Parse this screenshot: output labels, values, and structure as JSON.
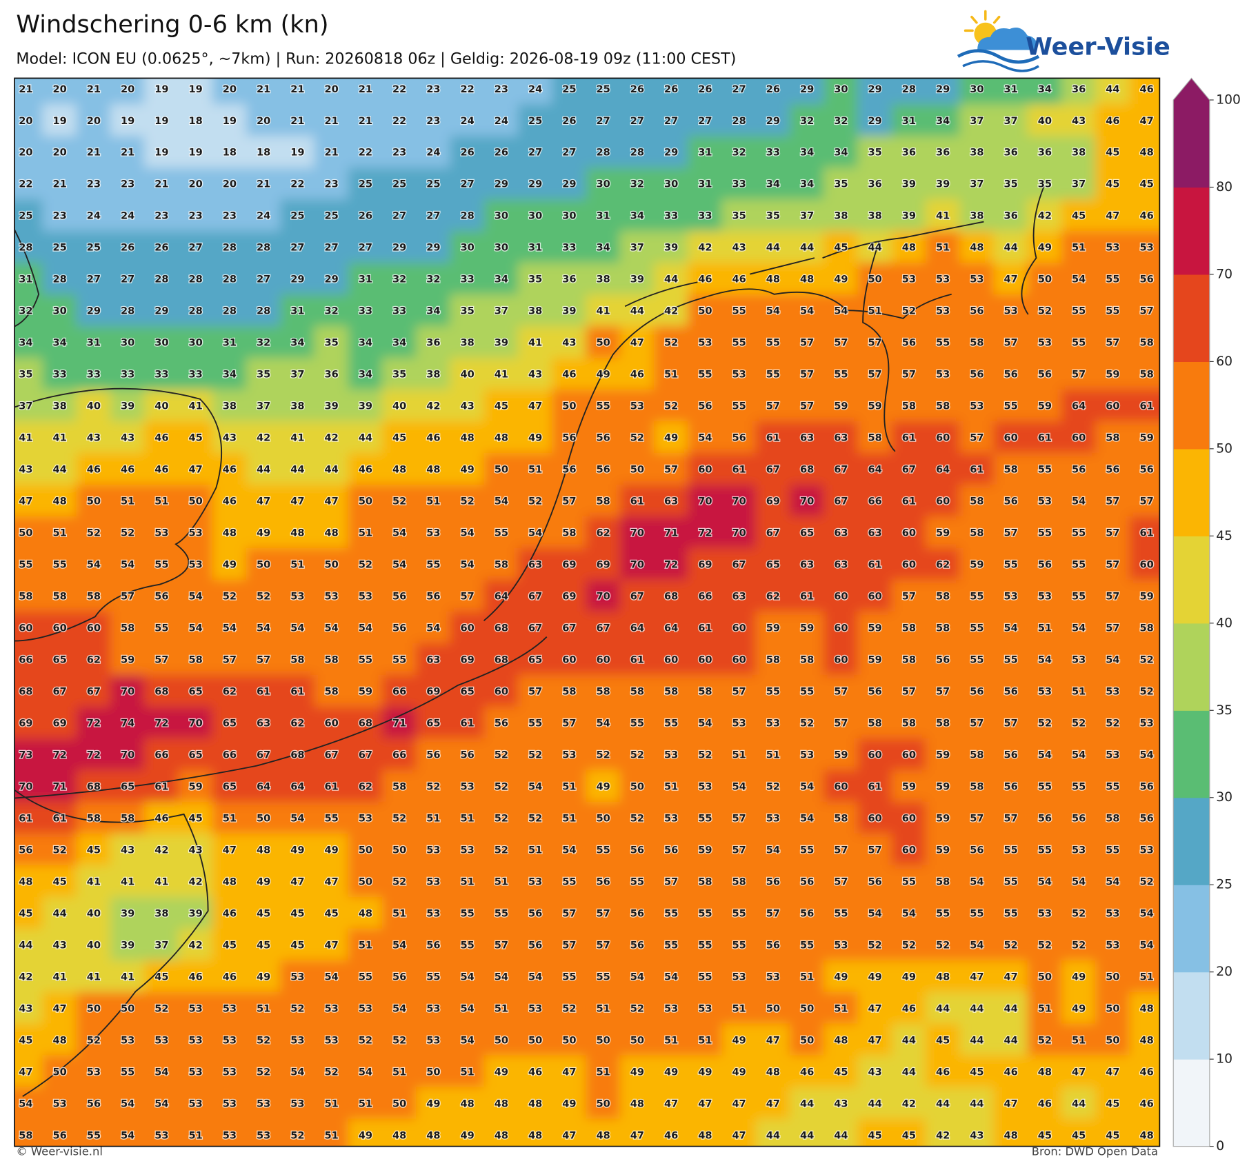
{
  "header": {
    "title": "Windschering 0-6 km (kn)",
    "subtitle": "Model: ICON EU (0.0625°, ~7km)  |  Run: 20260818 06z  |  Geldig: 2026-08-19 09z (11:00 CEST)"
  },
  "logo": {
    "text": "Weer-Visie"
  },
  "map": {
    "grid": [
      [
        21,
        20,
        21,
        20,
        19,
        19,
        20,
        21,
        21,
        20,
        21,
        22,
        23,
        22,
        23,
        24,
        25,
        25,
        26,
        26,
        26,
        27,
        26,
        29,
        30,
        29,
        28,
        29,
        30,
        31,
        34,
        36,
        44,
        46
      ],
      [
        20,
        19,
        20,
        19,
        19,
        18,
        19,
        20,
        21,
        21,
        21,
        22,
        23,
        24,
        24,
        25,
        26,
        27,
        27,
        27,
        27,
        28,
        29,
        32,
        32,
        29,
        31,
        34,
        37,
        37,
        40,
        43,
        46,
        47
      ],
      [
        20,
        20,
        21,
        21,
        19,
        19,
        18,
        18,
        19,
        21,
        22,
        23,
        24,
        26,
        26,
        27,
        27,
        28,
        28,
        29,
        31,
        32,
        33,
        34,
        34,
        35,
        36,
        36,
        38,
        36,
        36,
        38,
        45,
        48
      ],
      [
        22,
        21,
        23,
        23,
        21,
        20,
        20,
        21,
        22,
        23,
        25,
        25,
        25,
        27,
        29,
        29,
        29,
        30,
        32,
        30,
        31,
        33,
        34,
        34,
        35,
        36,
        39,
        39,
        37,
        35,
        35,
        37,
        45,
        45
      ],
      [
        25,
        23,
        24,
        24,
        23,
        23,
        23,
        24,
        25,
        25,
        26,
        27,
        27,
        28,
        30,
        30,
        30,
        31,
        34,
        33,
        33,
        35,
        35,
        37,
        38,
        38,
        39,
        41,
        38,
        36,
        42,
        45,
        47,
        46
      ],
      [
        28,
        25,
        25,
        26,
        26,
        27,
        28,
        28,
        27,
        27,
        27,
        29,
        29,
        30,
        30,
        31,
        33,
        34,
        37,
        39,
        42,
        43,
        44,
        44,
        45,
        44,
        48,
        51,
        48,
        44,
        49,
        51,
        53,
        53
      ],
      [
        31,
        28,
        27,
        27,
        28,
        28,
        28,
        27,
        29,
        29,
        31,
        32,
        32,
        33,
        34,
        35,
        36,
        38,
        39,
        44,
        46,
        46,
        48,
        48,
        49,
        50,
        53,
        53,
        53,
        47,
        50,
        54,
        55,
        56
      ],
      [
        32,
        30,
        29,
        28,
        29,
        28,
        28,
        28,
        31,
        32,
        33,
        33,
        34,
        35,
        37,
        38,
        39,
        41,
        44,
        42,
        50,
        55,
        54,
        54,
        54,
        51,
        52,
        53,
        56,
        53,
        52,
        55,
        55,
        57
      ],
      [
        34,
        34,
        31,
        30,
        30,
        30,
        31,
        32,
        34,
        35,
        34,
        34,
        36,
        38,
        39,
        41,
        43,
        50,
        47,
        52,
        53,
        55,
        55,
        57,
        57,
        57,
        56,
        55,
        58,
        57,
        53,
        55,
        57,
        58
      ],
      [
        35,
        33,
        33,
        33,
        33,
        33,
        34,
        35,
        37,
        36,
        34,
        35,
        38,
        40,
        41,
        43,
        46,
        49,
        46,
        51,
        55,
        53,
        55,
        57,
        55,
        57,
        57,
        53,
        56,
        56,
        56,
        57,
        59,
        58
      ],
      [
        37,
        38,
        40,
        39,
        40,
        41,
        38,
        37,
        38,
        39,
        39,
        40,
        42,
        43,
        45,
        47,
        50,
        55,
        53,
        52,
        56,
        55,
        57,
        57,
        59,
        59,
        58,
        58,
        53,
        55,
        59,
        64,
        60,
        61
      ],
      [
        41,
        41,
        43,
        43,
        46,
        45,
        43,
        42,
        41,
        42,
        44,
        45,
        46,
        48,
        48,
        49,
        56,
        56,
        52,
        49,
        54,
        56,
        61,
        63,
        63,
        58,
        61,
        60,
        57,
        60,
        61,
        60,
        58,
        59
      ],
      [
        43,
        44,
        46,
        46,
        46,
        47,
        46,
        44,
        44,
        44,
        46,
        48,
        48,
        49,
        50,
        51,
        56,
        56,
        50,
        57,
        60,
        61,
        67,
        68,
        67,
        64,
        67,
        64,
        61,
        58,
        55,
        56,
        56,
        56
      ],
      [
        47,
        48,
        50,
        51,
        51,
        50,
        46,
        47,
        47,
        47,
        50,
        52,
        51,
        52,
        54,
        52,
        57,
        58,
        61,
        63,
        70,
        70,
        69,
        70,
        67,
        66,
        61,
        60,
        58,
        56,
        53,
        54,
        57,
        57
      ],
      [
        50,
        51,
        52,
        52,
        53,
        53,
        48,
        49,
        48,
        48,
        51,
        54,
        53,
        54,
        55,
        54,
        58,
        62,
        70,
        71,
        72,
        70,
        67,
        65,
        63,
        63,
        60,
        59,
        58,
        57,
        55,
        55,
        57,
        61
      ],
      [
        55,
        55,
        54,
        54,
        55,
        53,
        49,
        50,
        51,
        50,
        52,
        54,
        55,
        54,
        58,
        63,
        69,
        69,
        70,
        72,
        69,
        67,
        65,
        63,
        63,
        61,
        60,
        62,
        59,
        55,
        56,
        55,
        57,
        60
      ],
      [
        58,
        58,
        58,
        57,
        56,
        54,
        52,
        52,
        53,
        53,
        53,
        56,
        56,
        57,
        64,
        67,
        69,
        70,
        67,
        68,
        66,
        63,
        62,
        61,
        60,
        60,
        57,
        58,
        55,
        53,
        53,
        55,
        57,
        59
      ],
      [
        60,
        60,
        60,
        58,
        55,
        54,
        54,
        54,
        54,
        54,
        54,
        56,
        54,
        60,
        68,
        67,
        67,
        67,
        64,
        64,
        61,
        60,
        59,
        59,
        60,
        59,
        58,
        58,
        55,
        54,
        51,
        54,
        57,
        58
      ],
      [
        66,
        65,
        62,
        59,
        57,
        58,
        57,
        57,
        58,
        58,
        55,
        55,
        63,
        69,
        68,
        65,
        60,
        60,
        61,
        60,
        60,
        60,
        58,
        58,
        60,
        59,
        58,
        56,
        55,
        55,
        54,
        53,
        54,
        52
      ],
      [
        68,
        67,
        67,
        70,
        68,
        65,
        62,
        61,
        61,
        58,
        59,
        66,
        69,
        65,
        60,
        57,
        58,
        58,
        58,
        58,
        58,
        57,
        55,
        55,
        57,
        56,
        57,
        57,
        56,
        56,
        53,
        51,
        53,
        52
      ],
      [
        69,
        69,
        72,
        74,
        72,
        70,
        65,
        63,
        62,
        60,
        68,
        71,
        65,
        61,
        56,
        55,
        57,
        54,
        55,
        55,
        54,
        53,
        53,
        52,
        57,
        58,
        58,
        58,
        57,
        57,
        52,
        52,
        52,
        53
      ],
      [
        73,
        72,
        72,
        70,
        66,
        65,
        66,
        67,
        68,
        67,
        67,
        66,
        56,
        56,
        52,
        52,
        53,
        52,
        52,
        53,
        52,
        51,
        51,
        53,
        59,
        60,
        60,
        59,
        58,
        56,
        54,
        54,
        53,
        54
      ],
      [
        70,
        71,
        68,
        65,
        61,
        59,
        65,
        64,
        64,
        61,
        62,
        58,
        52,
        53,
        52,
        54,
        51,
        49,
        50,
        51,
        53,
        54,
        52,
        54,
        60,
        61,
        59,
        59,
        58,
        56,
        55,
        55,
        55,
        56
      ],
      [
        61,
        61,
        58,
        58,
        46,
        45,
        51,
        50,
        54,
        55,
        53,
        52,
        51,
        51,
        52,
        52,
        51,
        50,
        52,
        53,
        55,
        57,
        53,
        54,
        58,
        60,
        60,
        59,
        57,
        57,
        56,
        56,
        58,
        56
      ],
      [
        56,
        52,
        45,
        43,
        42,
        43,
        47,
        48,
        49,
        49,
        50,
        50,
        53,
        53,
        52,
        51,
        54,
        55,
        56,
        56,
        59,
        57,
        54,
        55,
        57,
        57,
        60,
        59,
        56,
        55,
        55,
        53,
        55,
        53
      ],
      [
        48,
        45,
        41,
        41,
        41,
        42,
        48,
        49,
        47,
        47,
        50,
        52,
        53,
        51,
        51,
        53,
        55,
        56,
        55,
        57,
        58,
        58,
        56,
        56,
        57,
        56,
        55,
        58,
        54,
        55,
        54,
        54,
        54,
        52
      ],
      [
        45,
        44,
        40,
        39,
        38,
        39,
        46,
        45,
        45,
        45,
        48,
        51,
        53,
        55,
        55,
        56,
        57,
        57,
        56,
        55,
        55,
        55,
        57,
        56,
        55,
        54,
        54,
        55,
        55,
        55,
        53,
        52,
        53,
        54
      ],
      [
        44,
        43,
        40,
        39,
        37,
        42,
        45,
        45,
        45,
        47,
        51,
        54,
        56,
        55,
        57,
        56,
        57,
        57,
        56,
        55,
        55,
        55,
        56,
        55,
        53,
        52,
        52,
        52,
        54,
        52,
        52,
        52,
        53,
        54
      ],
      [
        42,
        41,
        41,
        41,
        45,
        46,
        46,
        49,
        53,
        54,
        55,
        56,
        55,
        54,
        54,
        54,
        55,
        55,
        54,
        54,
        55,
        53,
        53,
        51,
        49,
        49,
        49,
        48,
        47,
        47,
        50,
        49,
        50,
        51
      ],
      [
        43,
        47,
        50,
        50,
        52,
        53,
        53,
        51,
        52,
        53,
        53,
        54,
        53,
        54,
        51,
        53,
        52,
        51,
        52,
        53,
        53,
        51,
        50,
        50,
        51,
        47,
        46,
        44,
        44,
        44,
        51,
        49,
        50,
        48
      ],
      [
        45,
        48,
        52,
        53,
        53,
        53,
        53,
        52,
        53,
        53,
        52,
        52,
        53,
        54,
        50,
        50,
        50,
        50,
        50,
        51,
        51,
        49,
        47,
        50,
        48,
        47,
        44,
        45,
        44,
        44,
        52,
        51,
        50,
        48
      ],
      [
        47,
        50,
        53,
        55,
        54,
        53,
        53,
        52,
        54,
        52,
        54,
        51,
        50,
        51,
        49,
        46,
        47,
        51,
        49,
        49,
        49,
        49,
        48,
        46,
        45,
        43,
        44,
        46,
        45,
        46,
        48,
        47,
        47,
        46
      ],
      [
        54,
        53,
        56,
        54,
        54,
        53,
        53,
        53,
        53,
        51,
        51,
        50,
        49,
        48,
        48,
        48,
        49,
        50,
        48,
        47,
        47,
        47,
        47,
        44,
        43,
        44,
        42,
        44,
        44,
        47,
        46,
        44,
        45,
        46
      ],
      [
        58,
        56,
        55,
        54,
        53,
        51,
        53,
        53,
        52,
        51,
        49,
        48,
        48,
        49,
        48,
        48,
        47,
        48,
        47,
        46,
        48,
        47,
        44,
        44,
        44,
        45,
        45,
        42,
        43,
        48,
        45,
        45,
        45,
        48
      ]
    ]
  },
  "colorbar": {
    "levels": [
      0,
      10,
      20,
      25,
      30,
      35,
      40,
      45,
      50,
      60,
      70,
      80,
      100
    ],
    "colors": [
      "#f1f5f9",
      "#c2def0",
      "#86c0e4",
      "#55a7c6",
      "#5abd73",
      "#afd35b",
      "#e4d335",
      "#fbb503",
      "#f87b0d",
      "#e5461d",
      "#c8153f",
      "#8c1b64"
    ],
    "extend": "max"
  },
  "footer": {
    "left": "© Weer-visie.nl",
    "right": "Bron: DWD Open Data"
  }
}
